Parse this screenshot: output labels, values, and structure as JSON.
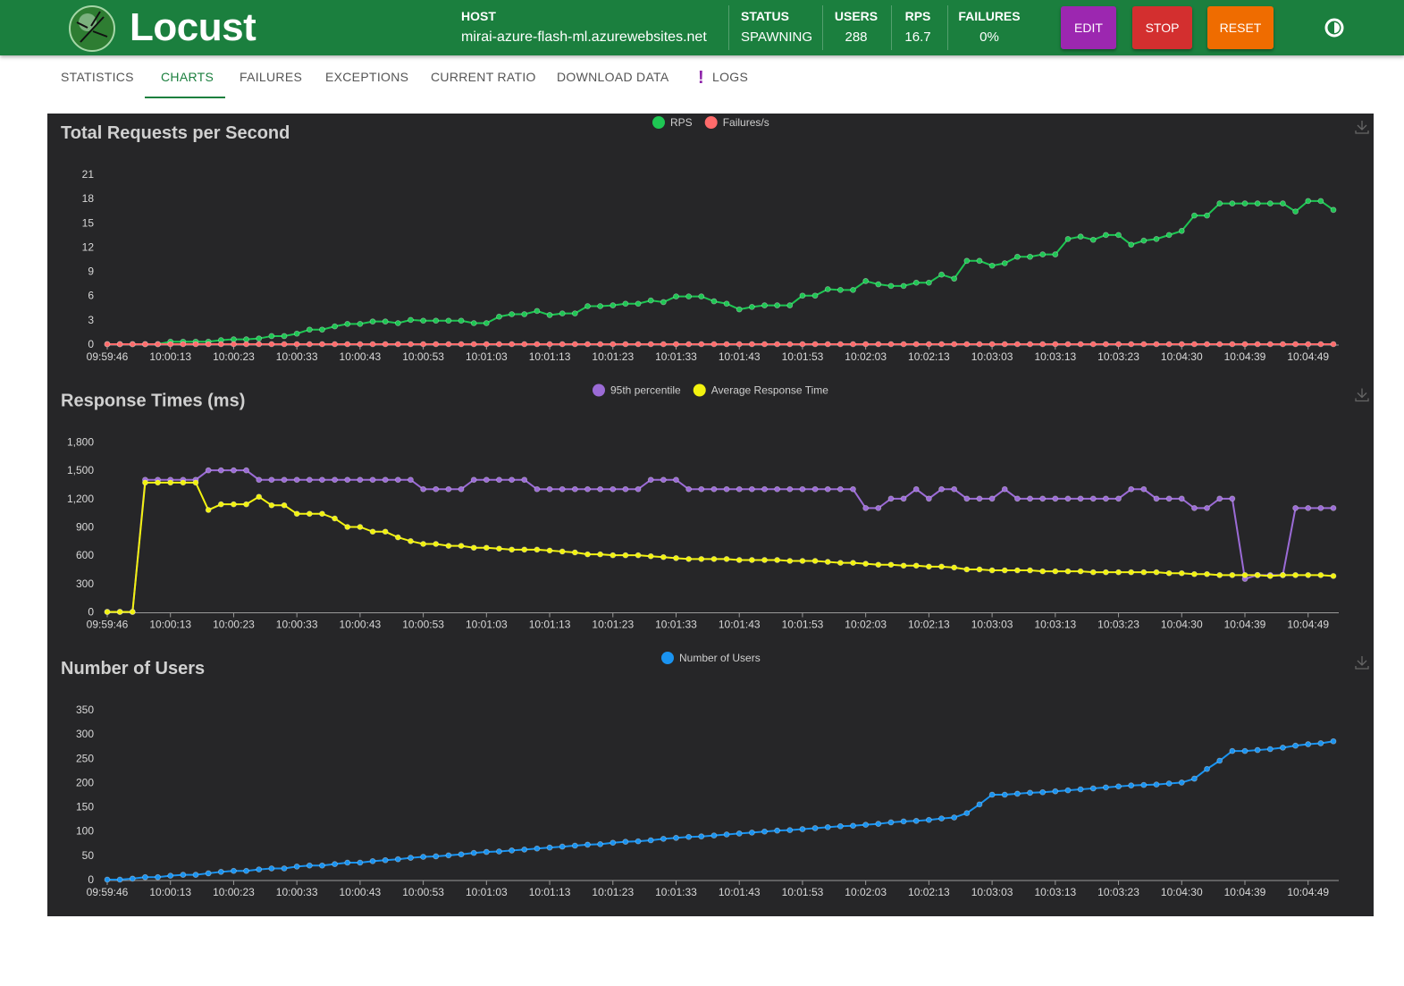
{
  "header": {
    "brand": "Locust",
    "host_label": "HOST",
    "host": "mirai-azure-flash-ml.azurewebsites.net",
    "stats": [
      {
        "label": "STATUS",
        "value": "SPAWNING"
      },
      {
        "label": "USERS",
        "value": "288"
      },
      {
        "label": "RPS",
        "value": "16.7"
      },
      {
        "label": "FAILURES",
        "value": "0%"
      }
    ],
    "buttons": [
      "EDIT",
      "STOP",
      "RESET"
    ]
  },
  "tabs": [
    "STATISTICS",
    "CHARTS",
    "FAILURES",
    "EXCEPTIONS",
    "CURRENT RATIO",
    "DOWNLOAD DATA",
    "LOGS"
  ],
  "logs_badge": "!",
  "chart_data": [
    {
      "type": "line",
      "title": "Total Requests per Second",
      "categories": [
        "09:59:46",
        null,
        null,
        null,
        null,
        "10:00:13",
        null,
        null,
        null,
        null,
        "10:00:23",
        null,
        null,
        null,
        null,
        "10:00:33",
        null,
        null,
        null,
        null,
        "10:00:43",
        null,
        null,
        null,
        null,
        "10:00:53",
        null,
        null,
        null,
        null,
        "10:01:03",
        null,
        null,
        null,
        null,
        "10:01:13",
        null,
        null,
        null,
        null,
        "10:01:23",
        null,
        null,
        null,
        null,
        "10:01:33",
        null,
        null,
        null,
        null,
        "10:01:43",
        null,
        null,
        null,
        null,
        "10:01:53",
        null,
        null,
        null,
        null,
        "10:02:03",
        null,
        null,
        null,
        null,
        "10:02:13",
        null,
        null,
        null,
        null,
        "10:03:03",
        null,
        null,
        null,
        null,
        "10:03:13",
        null,
        null,
        null,
        null,
        "10:03:23",
        null,
        null,
        null,
        null,
        "10:04:30",
        null,
        null,
        null,
        null,
        "10:04:39",
        null,
        null,
        null,
        null,
        "10:04:49",
        null,
        null
      ],
      "series": [
        {
          "name": "RPS",
          "color": "#1ec653",
          "values": [
            0,
            0,
            0,
            0,
            0,
            0.3,
            0.3,
            0.3,
            0.3,
            0.5,
            0.6,
            0.6,
            0.7,
            1.0,
            1.0,
            1.3,
            1.8,
            1.8,
            2.2,
            2.5,
            2.5,
            2.8,
            2.8,
            2.6,
            3.0,
            2.9,
            2.9,
            2.9,
            2.9,
            2.6,
            2.6,
            3.4,
            3.7,
            3.7,
            4.1,
            3.6,
            3.8,
            3.8,
            4.7,
            4.7,
            4.8,
            5.0,
            5.0,
            5.4,
            5.2,
            5.9,
            5.9,
            5.9,
            5.3,
            5.0,
            4.3,
            4.6,
            4.8,
            4.8,
            4.8,
            6.0,
            6.0,
            6.8,
            6.7,
            6.7,
            7.8,
            7.4,
            7.2,
            7.2,
            7.6,
            7.6,
            8.6,
            8.1,
            10.3,
            10.3,
            9.7,
            10.0,
            10.8,
            10.8,
            11.1,
            11.1,
            13.0,
            13.3,
            12.9,
            13.5,
            13.5,
            12.3,
            12.8,
            13.0,
            13.5,
            14.0,
            15.9,
            15.9,
            17.4,
            17.4,
            17.4,
            17.4,
            17.4,
            17.4,
            16.4,
            17.7,
            17.7,
            16.6
          ]
        },
        {
          "name": "Failures/s",
          "color": "#ff6b6b",
          "values": [
            0,
            0,
            0,
            0,
            0,
            0,
            0,
            0,
            0,
            0,
            0,
            0,
            0,
            0,
            0,
            0,
            0,
            0,
            0,
            0,
            0,
            0,
            0,
            0,
            0,
            0,
            0,
            0,
            0,
            0,
            0,
            0,
            0,
            0,
            0,
            0,
            0,
            0,
            0,
            0,
            0,
            0,
            0,
            0,
            0,
            0,
            0,
            0,
            0,
            0,
            0,
            0,
            0,
            0,
            0,
            0,
            0,
            0,
            0,
            0,
            0,
            0,
            0,
            0,
            0,
            0,
            0,
            0,
            0,
            0,
            0,
            0,
            0,
            0,
            0,
            0,
            0,
            0,
            0,
            0,
            0,
            0,
            0,
            0,
            0,
            0,
            0,
            0,
            0,
            0,
            0,
            0,
            0,
            0,
            0,
            0,
            0,
            0
          ]
        }
      ],
      "ylim": [
        0,
        21
      ],
      "yticks": [
        0,
        3,
        6,
        9,
        12,
        15,
        18,
        21
      ],
      "grid": false,
      "legend": "top"
    },
    {
      "type": "line",
      "title": "Response Times (ms)",
      "categories": [
        "09:59:46",
        null,
        null,
        null,
        null,
        "10:00:13",
        null,
        null,
        null,
        null,
        "10:00:23",
        null,
        null,
        null,
        null,
        "10:00:33",
        null,
        null,
        null,
        null,
        "10:00:43",
        null,
        null,
        null,
        null,
        "10:00:53",
        null,
        null,
        null,
        null,
        "10:01:03",
        null,
        null,
        null,
        null,
        "10:01:13",
        null,
        null,
        null,
        null,
        "10:01:23",
        null,
        null,
        null,
        null,
        "10:01:33",
        null,
        null,
        null,
        null,
        "10:01:43",
        null,
        null,
        null,
        null,
        "10:01:53",
        null,
        null,
        null,
        null,
        "10:02:03",
        null,
        null,
        null,
        null,
        "10:02:13",
        null,
        null,
        null,
        null,
        "10:03:03",
        null,
        null,
        null,
        null,
        "10:03:13",
        null,
        null,
        null,
        null,
        "10:03:23",
        null,
        null,
        null,
        null,
        "10:04:30",
        null,
        null,
        null,
        null,
        "10:04:39",
        null,
        null,
        null,
        null,
        "10:04:49",
        null,
        null
      ],
      "series": [
        {
          "name": "95th percentile",
          "color": "#9b6bd6",
          "values": [
            0,
            0,
            0,
            1400,
            1400,
            1400,
            1400,
            1400,
            1500,
            1500,
            1500,
            1500,
            1400,
            1400,
            1400,
            1400,
            1400,
            1400,
            1400,
            1400,
            1400,
            1400,
            1400,
            1400,
            1400,
            1300,
            1300,
            1300,
            1300,
            1400,
            1400,
            1400,
            1400,
            1400,
            1300,
            1300,
            1300,
            1300,
            1300,
            1300,
            1300,
            1300,
            1300,
            1400,
            1400,
            1400,
            1300,
            1300,
            1300,
            1300,
            1300,
            1300,
            1300,
            1300,
            1300,
            1300,
            1300,
            1300,
            1300,
            1300,
            1100,
            1100,
            1200,
            1200,
            1300,
            1200,
            1300,
            1300,
            1200,
            1200,
            1200,
            1300,
            1200,
            1200,
            1200,
            1200,
            1200,
            1200,
            1200,
            1200,
            1200,
            1300,
            1300,
            1200,
            1200,
            1200,
            1100,
            1100,
            1200,
            1200,
            350,
            390,
            390,
            390,
            1100,
            1100,
            1100,
            1100
          ]
        },
        {
          "name": "Average Response Time",
          "color": "#f2f20f",
          "values": [
            0,
            0,
            0,
            1370,
            1370,
            1370,
            1370,
            1370,
            1080,
            1140,
            1140,
            1140,
            1220,
            1130,
            1130,
            1040,
            1040,
            1040,
            990,
            900,
            900,
            850,
            850,
            790,
            750,
            720,
            720,
            700,
            700,
            680,
            680,
            670,
            660,
            660,
            660,
            650,
            640,
            630,
            610,
            610,
            600,
            600,
            600,
            590,
            580,
            570,
            560,
            560,
            560,
            560,
            550,
            550,
            550,
            550,
            540,
            540,
            540,
            530,
            520,
            520,
            510,
            500,
            500,
            490,
            490,
            480,
            480,
            470,
            450,
            450,
            440,
            440,
            440,
            440,
            430,
            430,
            430,
            430,
            420,
            420,
            420,
            420,
            420,
            420,
            410,
            410,
            400,
            400,
            390,
            390,
            390,
            390,
            380,
            390,
            390,
            390,
            390,
            380
          ]
        }
      ],
      "ylim": [
        0,
        1800
      ],
      "yticks": [
        0,
        300,
        600,
        900,
        {
          "value": 1200,
          "label": "1,200"
        },
        {
          "value": 1500,
          "label": "1,500"
        },
        {
          "value": 1800,
          "label": "1,800"
        }
      ],
      "grid": false,
      "legend": "top"
    },
    {
      "type": "line",
      "title": "Number of Users",
      "categories": [
        "09:59:46",
        null,
        null,
        null,
        null,
        "10:00:13",
        null,
        null,
        null,
        null,
        "10:00:23",
        null,
        null,
        null,
        null,
        "10:00:33",
        null,
        null,
        null,
        null,
        "10:00:43",
        null,
        null,
        null,
        null,
        "10:00:53",
        null,
        null,
        null,
        null,
        "10:01:03",
        null,
        null,
        null,
        null,
        "10:01:13",
        null,
        null,
        null,
        null,
        "10:01:23",
        null,
        null,
        null,
        null,
        "10:01:33",
        null,
        null,
        null,
        null,
        "10:01:43",
        null,
        null,
        null,
        null,
        "10:01:53",
        null,
        null,
        null,
        null,
        "10:02:03",
        null,
        null,
        null,
        null,
        "10:02:13",
        null,
        null,
        null,
        null,
        "10:03:03",
        null,
        null,
        null,
        null,
        "10:03:13",
        null,
        null,
        null,
        null,
        "10:03:23",
        null,
        null,
        null,
        null,
        "10:04:30",
        null,
        null,
        null,
        null,
        "10:04:39",
        null,
        null,
        null,
        null,
        "10:04:49",
        null,
        null
      ],
      "series": [
        {
          "name": "Number of Users",
          "color": "#1a93f0",
          "values": [
            0,
            0,
            2,
            5,
            5,
            8,
            10,
            10,
            13,
            16,
            18,
            18,
            21,
            23,
            23,
            27,
            29,
            29,
            32,
            35,
            35,
            38,
            40,
            42,
            45,
            47,
            48,
            50,
            52,
            55,
            57,
            58,
            60,
            62,
            64,
            66,
            68,
            70,
            72,
            73,
            76,
            78,
            79,
            81,
            84,
            86,
            88,
            89,
            91,
            93,
            95,
            97,
            99,
            101,
            102,
            104,
            106,
            108,
            110,
            111,
            113,
            115,
            118,
            120,
            121,
            123,
            126,
            128,
            137,
            155,
            175,
            175,
            177,
            179,
            180,
            182,
            184,
            186,
            188,
            190,
            192,
            194,
            195,
            196,
            198,
            200,
            208,
            228,
            245,
            265,
            265,
            267,
            269,
            272,
            276,
            279,
            281,
            285
          ]
        }
      ],
      "ylim": [
        0,
        350
      ],
      "yticks": [
        0,
        50,
        100,
        150,
        200,
        250,
        300,
        350
      ],
      "grid": false,
      "legend": "top"
    }
  ]
}
